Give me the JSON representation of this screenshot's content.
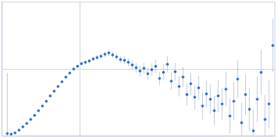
{
  "chart_data": {
    "type": "scatter",
    "color": "#3a6fc4",
    "marker": "circle",
    "grid": true,
    "tick_labels": false,
    "xlim": [
      0,
      0.35
    ],
    "ylim": [
      0,
      2
    ],
    "xticks": [
      0.1
    ],
    "yticks": [
      1
    ],
    "x": [
      0.007,
      0.012,
      0.017,
      0.022,
      0.027,
      0.032,
      0.037,
      0.042,
      0.047,
      0.052,
      0.057,
      0.062,
      0.067,
      0.072,
      0.077,
      0.082,
      0.087,
      0.092,
      0.097,
      0.102,
      0.107,
      0.112,
      0.117,
      0.122,
      0.127,
      0.132,
      0.137,
      0.142,
      0.147,
      0.152,
      0.157,
      0.162,
      0.167,
      0.172,
      0.177,
      0.182,
      0.187,
      0.192,
      0.197,
      0.202,
      0.207,
      0.212,
      0.217,
      0.222,
      0.227,
      0.232,
      0.237,
      0.242,
      0.247,
      0.252,
      0.257,
      0.262,
      0.267,
      0.272,
      0.277,
      0.282,
      0.287,
      0.292,
      0.297,
      0.302,
      0.307,
      0.312,
      0.317,
      0.322,
      0.327,
      0.332,
      0.337,
      0.342,
      0.347
    ],
    "values": [
      0.04,
      0.03,
      0.05,
      0.09,
      0.14,
      0.19,
      0.25,
      0.31,
      0.38,
      0.45,
      0.52,
      0.6,
      0.67,
      0.74,
      0.81,
      0.88,
      0.94,
      1.0,
      1.04,
      1.08,
      1.1,
      1.12,
      1.15,
      1.17,
      1.19,
      1.22,
      1.24,
      1.21,
      1.18,
      1.14,
      1.13,
      1.1,
      1.06,
      1.02,
      0.97,
      1.01,
      0.93,
      0.99,
      1.04,
      0.86,
      0.95,
      1.07,
      0.82,
      0.96,
      0.74,
      0.88,
      0.62,
      0.78,
      0.58,
      0.72,
      0.45,
      0.63,
      0.55,
      0.38,
      0.6,
      0.48,
      0.7,
      0.3,
      0.52,
      0.85,
      0.2,
      0.62,
      0.4,
      0.08,
      0.55,
      0.95,
      0.25,
      0.48,
      1.35
    ],
    "errors": [
      0.9,
      0.01,
      0.01,
      0.01,
      0.01,
      0.01,
      0.01,
      0.01,
      0.01,
      0.01,
      0.01,
      0.015,
      0.015,
      0.015,
      0.02,
      0.02,
      0.02,
      0.02,
      0.025,
      0.025,
      0.03,
      0.03,
      0.035,
      0.035,
      0.04,
      0.04,
      0.045,
      0.045,
      0.05,
      0.05,
      0.06,
      0.06,
      0.07,
      0.07,
      0.08,
      0.08,
      0.09,
      0.09,
      0.1,
      0.1,
      0.12,
      0.12,
      0.13,
      0.13,
      0.15,
      0.15,
      0.16,
      0.16,
      0.18,
      0.18,
      0.2,
      0.2,
      0.22,
      0.22,
      0.24,
      0.24,
      0.26,
      0.26,
      0.28,
      0.28,
      0.3,
      0.3,
      0.32,
      0.32,
      0.34,
      0.34,
      0.36,
      0.36,
      0.4
    ]
  }
}
